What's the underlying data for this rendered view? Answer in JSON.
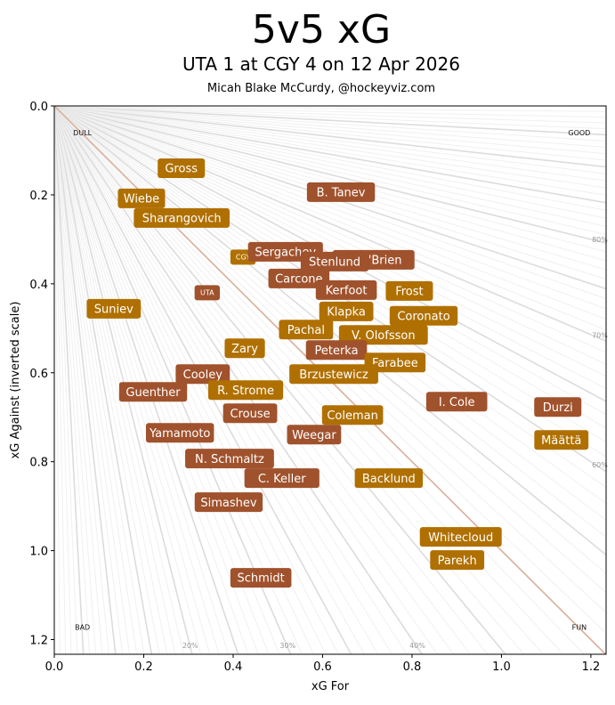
{
  "chart_data": {
    "type": "scatter",
    "title": "5v5 xG",
    "subtitle": "UTA 1 at CGY 4 on 12 Apr 2026",
    "byline": "Micah Blake McCurdy, @hockeyviz.com",
    "xlabel": "xG For",
    "ylabel": "xG Against (inverted scale)",
    "xlim": [
      0,
      1.234
    ],
    "ylim": [
      1.233,
      0
    ],
    "y_inverted": true,
    "xticks": [
      "0.0",
      "0.2",
      "0.4",
      "0.6",
      "0.8",
      "1.0",
      "1.2"
    ],
    "yticks": [
      "0.0",
      "0.2",
      "0.4",
      "0.6",
      "0.8",
      "1.0",
      "1.2"
    ],
    "corner_labels": {
      "top_left": "DULL",
      "top_right": "GOOD",
      "bottom_left": "BAD",
      "bottom_right": "FUN"
    },
    "share_labels": [
      "20%",
      "30%",
      "40%",
      "60%",
      "70%",
      "80%"
    ],
    "colors": {
      "CGY": "#b07000",
      "UTA": "#a0522d",
      "diagonal": "#dcb09c",
      "guide": "#e2e2e2"
    },
    "teams": [
      {
        "name": "CGY",
        "team": "CGY",
        "x": 0.422,
        "y": 0.34
      },
      {
        "name": "UTA",
        "team": "UTA",
        "x": 0.342,
        "y": 0.42
      }
    ],
    "players": [
      {
        "name": "Gross",
        "team": "CGY",
        "x": 0.284,
        "y": 0.14
      },
      {
        "name": "Wiebe",
        "team": "CGY",
        "x": 0.195,
        "y": 0.208
      },
      {
        "name": "Sharangovich",
        "team": "CGY",
        "x": 0.285,
        "y": 0.252
      },
      {
        "name": "B. Tanev",
        "team": "UTA",
        "x": 0.641,
        "y": 0.194
      },
      {
        "name": "L. O'Brien",
        "team": "UTA",
        "x": 0.714,
        "y": 0.346
      },
      {
        "name": "Sergachev",
        "team": "UTA",
        "x": 0.517,
        "y": 0.328
      },
      {
        "name": "Stenlund",
        "team": "UTA",
        "x": 0.627,
        "y": 0.35
      },
      {
        "name": "Carcone",
        "team": "UTA",
        "x": 0.547,
        "y": 0.388
      },
      {
        "name": "Kerfoot",
        "team": "UTA",
        "x": 0.653,
        "y": 0.414
      },
      {
        "name": "Frost",
        "team": "CGY",
        "x": 0.794,
        "y": 0.416
      },
      {
        "name": "Suniev",
        "team": "CGY",
        "x": 0.133,
        "y": 0.456
      },
      {
        "name": "Klapka",
        "team": "CGY",
        "x": 0.653,
        "y": 0.462
      },
      {
        "name": "Coronato",
        "team": "CGY",
        "x": 0.826,
        "y": 0.472
      },
      {
        "name": "Pachal",
        "team": "CGY",
        "x": 0.563,
        "y": 0.503
      },
      {
        "name": "V. Olofsson",
        "team": "CGY",
        "x": 0.736,
        "y": 0.515
      },
      {
        "name": "Zary",
        "team": "CGY",
        "x": 0.426,
        "y": 0.545
      },
      {
        "name": "Peterka",
        "team": "UTA",
        "x": 0.631,
        "y": 0.549
      },
      {
        "name": "Farabee",
        "team": "CGY",
        "x": 0.762,
        "y": 0.577
      },
      {
        "name": "Cooley",
        "team": "UTA",
        "x": 0.332,
        "y": 0.603
      },
      {
        "name": "Brzustewicz",
        "team": "CGY",
        "x": 0.625,
        "y": 0.603
      },
      {
        "name": "R. Strome",
        "team": "CGY",
        "x": 0.428,
        "y": 0.639
      },
      {
        "name": "Guenther",
        "team": "UTA",
        "x": 0.221,
        "y": 0.643
      },
      {
        "name": "I. Cole",
        "team": "UTA",
        "x": 0.9,
        "y": 0.665
      },
      {
        "name": "Durzi",
        "team": "UTA",
        "x": 1.126,
        "y": 0.677
      },
      {
        "name": "Crouse",
        "team": "UTA",
        "x": 0.438,
        "y": 0.691
      },
      {
        "name": "Coleman",
        "team": "CGY",
        "x": 0.667,
        "y": 0.695
      },
      {
        "name": "Yamamoto",
        "team": "UTA",
        "x": 0.281,
        "y": 0.735
      },
      {
        "name": "Weegar",
        "team": "UTA",
        "x": 0.581,
        "y": 0.739
      },
      {
        "name": "Määttä",
        "team": "CGY",
        "x": 1.134,
        "y": 0.751
      },
      {
        "name": "N. Schmaltz",
        "team": "UTA",
        "x": 0.392,
        "y": 0.793
      },
      {
        "name": "C. Keller",
        "team": "UTA",
        "x": 0.509,
        "y": 0.837
      },
      {
        "name": "Backlund",
        "team": "CGY",
        "x": 0.748,
        "y": 0.837
      },
      {
        "name": "Simashev",
        "team": "UTA",
        "x": 0.39,
        "y": 0.891
      },
      {
        "name": "Whitecloud",
        "team": "CGY",
        "x": 0.909,
        "y": 0.969
      },
      {
        "name": "Parekh",
        "team": "CGY",
        "x": 0.901,
        "y": 1.021
      },
      {
        "name": "Schmidt",
        "team": "UTA",
        "x": 0.462,
        "y": 1.061
      }
    ]
  }
}
